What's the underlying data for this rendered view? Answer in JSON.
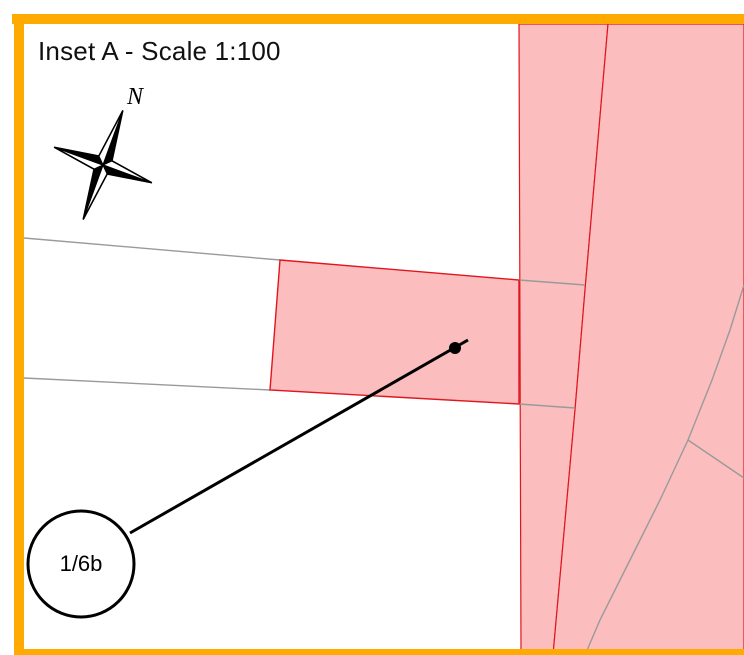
{
  "inset": {
    "title": "Inset A - Scale 1:100",
    "north_label": "N"
  },
  "callout": {
    "label": "1/6b"
  },
  "colors": {
    "frame": "#FFAA00",
    "parcel_fill": "#FCBDBE",
    "parcel_outline": "#E0161E",
    "boundary_line": "#9A9A9A",
    "leader_line": "#000000"
  },
  "icons": {
    "compass": "north-arrow-compass-rose"
  }
}
